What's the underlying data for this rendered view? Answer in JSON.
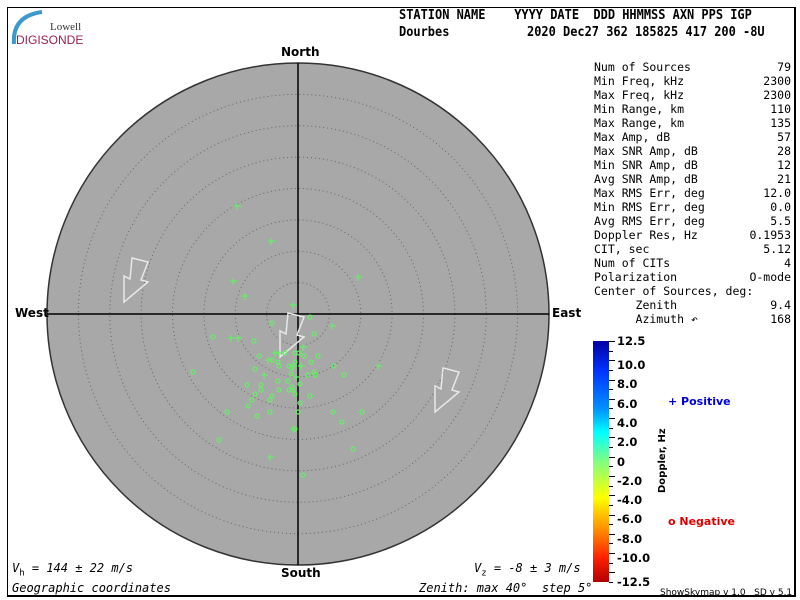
{
  "logo": {
    "line1": "Lowell",
    "line2": "DIGISONDE"
  },
  "header": {
    "labels": "STATION NAME    YYYY DATE  DDD HHMMSS AXN PPS IGP",
    "station": "Dourbes",
    "values": "2020 Dec27 362 185825 417 200 -8U"
  },
  "chart_data": {
    "type": "scatter",
    "projection": "polar skymap",
    "directions": {
      "north": "North",
      "south": "South",
      "east": "East",
      "west": "West"
    },
    "zenith_max_deg": 40,
    "zenith_step_deg": 5,
    "background_color": "#a8a8a8",
    "point_color": "#66ee66",
    "legend": {
      "positive": "Positive",
      "negative": "Negative",
      "positive_color": "#0000dd",
      "negative_color": "#dd0000"
    },
    "colorbar": {
      "title": "Doppler, Hz",
      "ticks": [
        "12.5",
        "10.0",
        "8.0",
        "6.0",
        "4.0",
        "2.0",
        "0",
        "-2.0",
        "-4.0",
        "-6.0",
        "-8.0",
        "-10.0",
        "-12.5"
      ]
    }
  },
  "stats": [
    {
      "label": "Num of Sources",
      "value": "79"
    },
    {
      "label": "Min Freq, kHz",
      "value": "2300"
    },
    {
      "label": "Max Freq, kHz",
      "value": "2300"
    },
    {
      "label": "Min Range, km",
      "value": "110"
    },
    {
      "label": "Max Range, km",
      "value": "135"
    },
    {
      "label": "Max Amp, dB",
      "value": "57"
    },
    {
      "label": "Max SNR Amp, dB",
      "value": "28"
    },
    {
      "label": "Min SNR Amp, dB",
      "value": "12"
    },
    {
      "label": "Avg SNR Amp, dB",
      "value": "21"
    },
    {
      "label": "Max RMS Err, deg",
      "value": "12.0"
    },
    {
      "label": "Min RMS Err, deg",
      "value": "0.0"
    },
    {
      "label": "Avg RMS Err, deg",
      "value": "5.5"
    },
    {
      "label": "Doppler Res, Hz",
      "value": "0.1953"
    },
    {
      "label": "CIT, sec",
      "value": "5.12"
    },
    {
      "label": "Num of CITs",
      "value": "4"
    },
    {
      "label": "Polarization",
      "value": "O-mode"
    },
    {
      "label": "Center of Sources, deg:",
      "value": ""
    },
    {
      "label": "      Zenith",
      "value": "9.4"
    },
    {
      "label": "      Azimuth ↶",
      "value": "168"
    }
  ],
  "footer": {
    "vh": "V",
    "vh_sub": "h",
    "vh_rest": " = 144 ± 22 m/s",
    "vz": "V",
    "vz_sub": "z",
    "vz_rest": " = -8 ± 3 m/s",
    "coords": "Geographic coordinates",
    "zenith": "Zenith: max 40°  step 5°",
    "version": "ShowSkymap v 1.0   SD v 5.1"
  }
}
